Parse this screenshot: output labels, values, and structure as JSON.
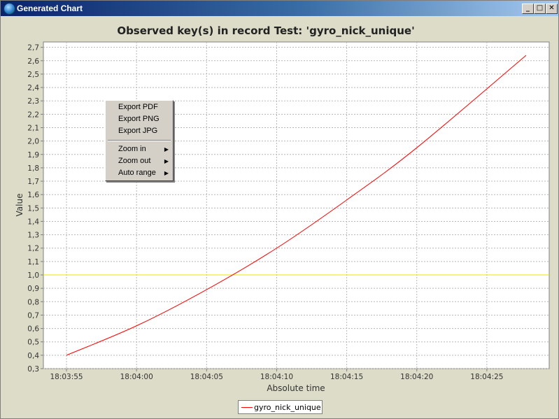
{
  "window": {
    "title": "Generated Chart",
    "minimize": "_",
    "maximize": "□",
    "close": "✕"
  },
  "context_menu": {
    "items": [
      {
        "label": "Export PDF",
        "submenu": false
      },
      {
        "label": "Export PNG",
        "submenu": false
      },
      {
        "label": "Export JPG",
        "submenu": false
      },
      {
        "label": "Zoom in",
        "submenu": true
      },
      {
        "label": "Zoom out",
        "submenu": true
      },
      {
        "label": "Auto range",
        "submenu": true
      }
    ],
    "submenu_arrow": "▶"
  },
  "chart_data": {
    "type": "line",
    "title": "Observed key(s) in record Test: 'gyro_nick_unique'",
    "xlabel": "Absolute time",
    "ylabel": "Value",
    "x_ticks": [
      "18:03:55",
      "18:04:00",
      "18:04:05",
      "18:04:10",
      "18:04:15",
      "18:04:20",
      "18:04:25"
    ],
    "x_tick_seconds": [
      0,
      5,
      10,
      15,
      20,
      25,
      30
    ],
    "xlim_seconds": [
      -1.65,
      34.45
    ],
    "ylim": [
      0.3,
      2.74
    ],
    "y_ticks": [
      "0,3",
      "0,4",
      "0,5",
      "0,6",
      "0,7",
      "0,8",
      "0,9",
      "1,0",
      "1,1",
      "1,2",
      "1,3",
      "1,4",
      "1,5",
      "1,6",
      "1,7",
      "1,8",
      "1,9",
      "2,0",
      "2,1",
      "2,2",
      "2,3",
      "2,4",
      "2,5",
      "2,6",
      "2,7"
    ],
    "grid": true,
    "legend_position": "bottom",
    "series": [
      {
        "name": "gyro_nick_unique",
        "color": "#ff0000",
        "x_seconds": [
          0,
          5,
          10,
          15,
          20,
          25,
          32.8
        ],
        "values": [
          0.4,
          0.62,
          0.89,
          1.2,
          1.56,
          1.95,
          2.64
        ]
      }
    ],
    "reference_line": {
      "value": 1.0,
      "color": "#e8e800"
    }
  }
}
